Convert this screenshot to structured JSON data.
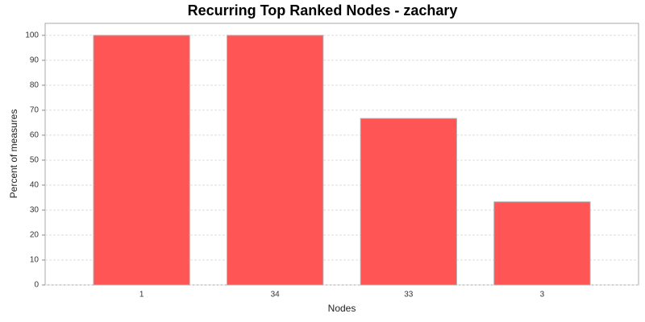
{
  "chart_data": {
    "type": "bar",
    "title": "Recurring Top Ranked Nodes - zachary",
    "x_label": "Nodes",
    "y_label": "Percent of measures",
    "categories": [
      "1",
      "34",
      "33",
      "3"
    ],
    "values": [
      100,
      100,
      66.7,
      33.3
    ],
    "color": "#ff5555",
    "ylim": [
      0,
      104.8
    ],
    "yticks": [
      0,
      10,
      20,
      30,
      40,
      50,
      60,
      70,
      80,
      90,
      100
    ],
    "grid": true
  }
}
